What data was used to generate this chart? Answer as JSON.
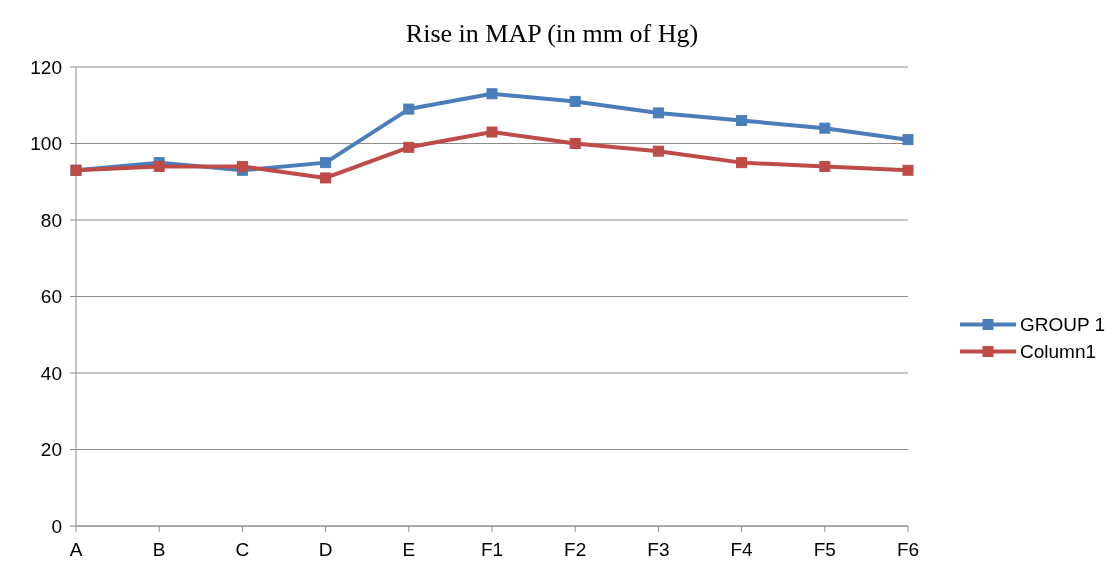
{
  "chart_data": {
    "type": "line",
    "title": "Rise in MAP (in mm of Hg)",
    "categories": [
      "A",
      "B",
      "C",
      "D",
      "E",
      "F1",
      "F2",
      "F3",
      "F4",
      "F5",
      "F6"
    ],
    "series": [
      {
        "name": "GROUP 1",
        "color": "#4a7ebb",
        "values": [
          93,
          95,
          93,
          95,
          109,
          113,
          111,
          108,
          106,
          104,
          101
        ]
      },
      {
        "name": "Column1",
        "color": "#be4b48",
        "values": [
          93,
          94,
          94,
          91,
          99,
          103,
          100,
          98,
          95,
          94,
          93
        ]
      }
    ],
    "ylim": [
      0,
      120
    ],
    "yticks": [
      0,
      20,
      40,
      60,
      80,
      100,
      120
    ],
    "grid": "y",
    "legend": "right",
    "marker": "square",
    "line_style": "solid"
  }
}
